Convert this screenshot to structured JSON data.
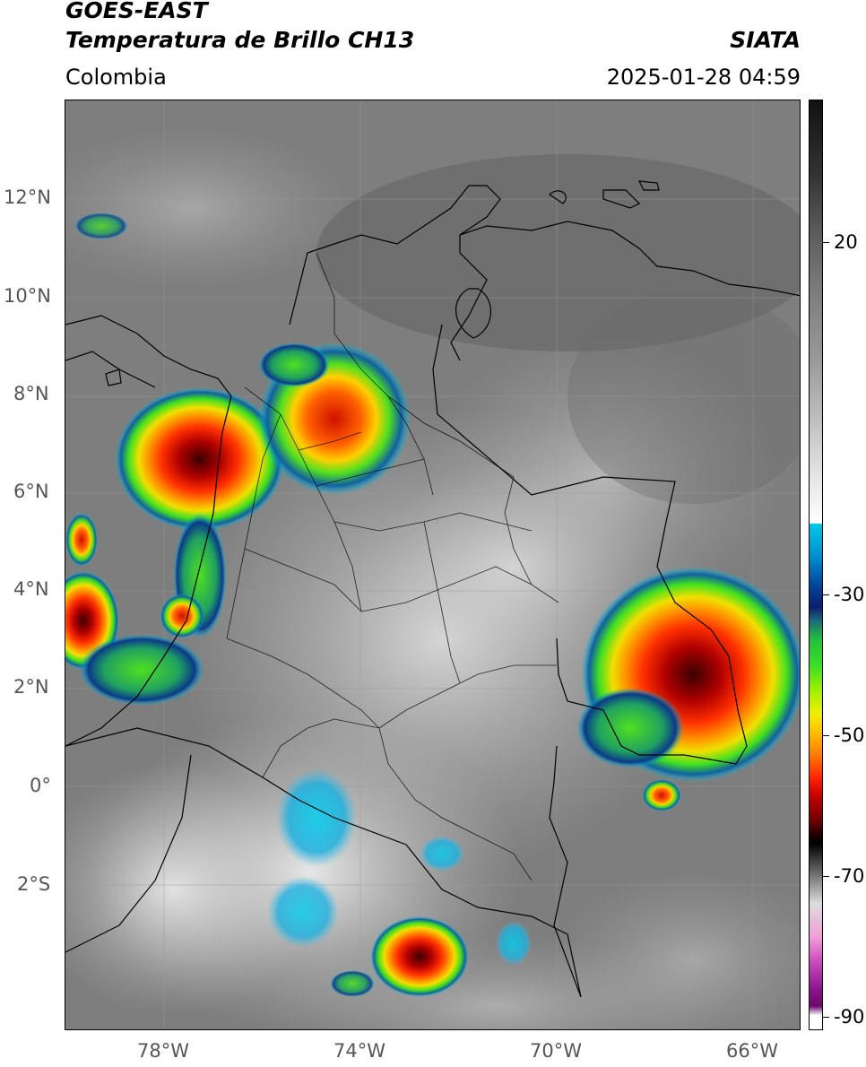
{
  "header": {
    "title_line1": "GOES-EAST",
    "title_line2": "Temperatura de Brillo CH13",
    "region": "Colombia",
    "agency": "SIATA",
    "datetime": "2025-01-28 04:59"
  },
  "axes": {
    "lat_labels": [
      "12°N",
      "10°N",
      "8°N",
      "6°N",
      "4°N",
      "2°N",
      "0°",
      "2°S"
    ],
    "lon_labels": [
      "78°W",
      "74°W",
      "70°W",
      "66°W"
    ]
  },
  "colorbar": {
    "tick_labels": [
      "20",
      "-30",
      "-50",
      "-70",
      "-90"
    ],
    "range": [
      -92,
      35
    ],
    "colors": {
      "warm_gray": "#7a7a7a",
      "cold_cyan": "#00c8e6",
      "deep_blue": "#0a1e6e",
      "green": "#40e020",
      "yellow": "#f0f000",
      "orange": "#ff7a00",
      "red": "#ff2000",
      "dark_red": "#700000",
      "black": "#000000",
      "magenta": "#d050c0",
      "purple": "#6a0a6a"
    }
  }
}
